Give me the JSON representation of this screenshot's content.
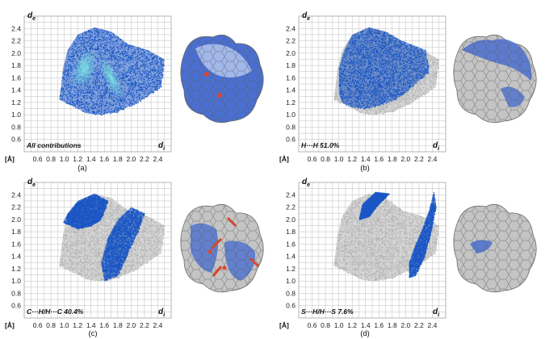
{
  "panels": [
    {
      "letter": "(a)",
      "contribution": "All contributions"
    },
    {
      "letter": "(b)",
      "contribution": "H···H 51.0%"
    },
    {
      "letter": "(c)",
      "contribution": "C···H/H···C 40.4%"
    },
    {
      "letter": "(d)",
      "contribution": "S···H/H···S 7.6%"
    }
  ],
  "axes": {
    "y_label_main": "d",
    "y_label_sub": "e",
    "x_label_main": "d",
    "x_label_sub": "i",
    "unit": "[Å]",
    "y_ticks": [
      "0.6",
      "0.8",
      "1.0",
      "1.2",
      "1.4",
      "1.6",
      "1.8",
      "2.0",
      "2.2",
      "2.4"
    ],
    "x_ticks": [
      "0.6",
      "0.8",
      "1.0",
      "1.2",
      "1.4",
      "1.6",
      "1.8",
      "2.0",
      "2.2",
      "2.4"
    ]
  },
  "colors": {
    "highlight": "#1a56c4",
    "background_points": "#b5b5b5",
    "grid": "#bdbdbd",
    "surface_blue": "#4a6fd0",
    "surface_gray": "#c4c4c4"
  },
  "chart_data": [
    {
      "type": "scatter",
      "label": "All contributions",
      "xlim": [
        0.4,
        2.6
      ],
      "ylim": [
        0.4,
        2.6
      ],
      "grid": true,
      "highlight_region": [
        [
          0.92,
          1.25
        ],
        [
          0.95,
          1.45
        ],
        [
          0.98,
          1.75
        ],
        [
          1.05,
          2.05
        ],
        [
          1.2,
          2.3
        ],
        [
          1.45,
          2.42
        ],
        [
          1.7,
          2.35
        ],
        [
          1.95,
          2.15
        ],
        [
          2.25,
          2.05
        ],
        [
          2.5,
          1.9
        ],
        [
          2.45,
          1.45
        ],
        [
          2.1,
          1.2
        ],
        [
          1.8,
          1.05
        ],
        [
          1.55,
          1.0
        ],
        [
          1.35,
          1.02
        ],
        [
          1.2,
          1.1
        ],
        [
          1.05,
          1.18
        ]
      ]
    },
    {
      "type": "scatter",
      "label": "H···H 51.0%",
      "xlim": [
        0.4,
        2.6
      ],
      "ylim": [
        0.4,
        2.6
      ],
      "grid": true,
      "background_region": [
        [
          0.92,
          1.25
        ],
        [
          0.95,
          1.45
        ],
        [
          0.98,
          1.75
        ],
        [
          1.05,
          2.05
        ],
        [
          1.2,
          2.3
        ],
        [
          1.45,
          2.42
        ],
        [
          1.7,
          2.35
        ],
        [
          1.95,
          2.15
        ],
        [
          2.25,
          2.05
        ],
        [
          2.5,
          1.9
        ],
        [
          2.45,
          1.45
        ],
        [
          2.1,
          1.2
        ],
        [
          1.8,
          1.05
        ],
        [
          1.55,
          1.0
        ],
        [
          1.35,
          1.02
        ],
        [
          1.2,
          1.1
        ],
        [
          1.05,
          1.18
        ]
      ],
      "highlight_region": [
        [
          1.0,
          1.35
        ],
        [
          1.0,
          1.75
        ],
        [
          1.08,
          2.05
        ],
        [
          1.2,
          2.3
        ],
        [
          1.45,
          2.42
        ],
        [
          1.7,
          2.35
        ],
        [
          1.95,
          2.2
        ],
        [
          2.3,
          2.05
        ],
        [
          2.35,
          1.7
        ],
        [
          2.1,
          1.45
        ],
        [
          1.85,
          1.25
        ],
        [
          1.6,
          1.15
        ],
        [
          1.4,
          1.1
        ],
        [
          1.2,
          1.12
        ],
        [
          1.05,
          1.2
        ]
      ]
    },
    {
      "type": "scatter",
      "label": "C···H/H···C 40.4%",
      "xlim": [
        0.4,
        2.6
      ],
      "ylim": [
        0.4,
        2.6
      ],
      "grid": true,
      "background_region": [
        [
          0.92,
          1.25
        ],
        [
          0.95,
          1.45
        ],
        [
          0.98,
          1.75
        ],
        [
          1.05,
          2.05
        ],
        [
          1.2,
          2.3
        ],
        [
          1.45,
          2.42
        ],
        [
          1.7,
          2.35
        ],
        [
          1.95,
          2.15
        ],
        [
          2.25,
          2.05
        ],
        [
          2.5,
          1.9
        ],
        [
          2.45,
          1.45
        ],
        [
          2.1,
          1.2
        ],
        [
          1.8,
          1.05
        ],
        [
          1.55,
          1.0
        ],
        [
          1.35,
          1.02
        ],
        [
          1.2,
          1.1
        ],
        [
          1.05,
          1.18
        ]
      ],
      "highlight_region_1": [
        [
          0.98,
          1.95
        ],
        [
          1.05,
          2.1
        ],
        [
          1.2,
          2.3
        ],
        [
          1.45,
          2.42
        ],
        [
          1.65,
          2.3
        ],
        [
          1.55,
          2.0
        ],
        [
          1.4,
          1.9
        ],
        [
          1.2,
          1.85
        ]
      ],
      "highlight_region_2": [
        [
          1.6,
          1.0
        ],
        [
          1.55,
          1.3
        ],
        [
          1.65,
          1.7
        ],
        [
          1.8,
          2.0
        ],
        [
          2.0,
          2.2
        ],
        [
          2.2,
          2.1
        ],
        [
          2.1,
          1.8
        ],
        [
          1.95,
          1.45
        ],
        [
          1.8,
          1.1
        ]
      ]
    },
    {
      "type": "scatter",
      "label": "S···H/H···S 7.6%",
      "xlim": [
        0.4,
        2.6
      ],
      "ylim": [
        0.4,
        2.6
      ],
      "grid": true,
      "background_region": [
        [
          0.92,
          1.25
        ],
        [
          0.95,
          1.45
        ],
        [
          0.98,
          1.75
        ],
        [
          1.05,
          2.05
        ],
        [
          1.2,
          2.3
        ],
        [
          1.45,
          2.42
        ],
        [
          1.7,
          2.35
        ],
        [
          1.95,
          2.15
        ],
        [
          2.25,
          2.05
        ],
        [
          2.5,
          1.9
        ],
        [
          2.45,
          1.45
        ],
        [
          2.1,
          1.2
        ],
        [
          1.8,
          1.05
        ],
        [
          1.55,
          1.0
        ],
        [
          1.35,
          1.02
        ],
        [
          1.2,
          1.1
        ],
        [
          1.05,
          1.18
        ]
      ],
      "highlight_region_1": [
        [
          1.3,
          2.0
        ],
        [
          1.35,
          2.25
        ],
        [
          1.55,
          2.45
        ],
        [
          1.75,
          2.42
        ],
        [
          1.55,
          2.2
        ],
        [
          1.45,
          2.05
        ]
      ],
      "highlight_region_2": [
        [
          2.05,
          1.05
        ],
        [
          2.05,
          1.3
        ],
        [
          2.15,
          1.6
        ],
        [
          2.25,
          1.85
        ],
        [
          2.35,
          2.15
        ],
        [
          2.42,
          2.45
        ],
        [
          2.45,
          2.2
        ],
        [
          2.38,
          1.8
        ],
        [
          2.28,
          1.4
        ],
        [
          2.15,
          1.1
        ]
      ]
    }
  ]
}
